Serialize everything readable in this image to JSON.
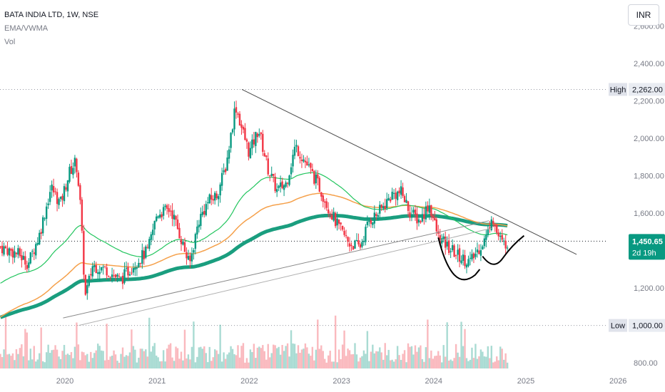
{
  "header": {
    "symbol_line": "BATA INDIA LTD, 1W, NSE",
    "indicator_1": "EMA/VWMA",
    "indicator_2": "Vol"
  },
  "currency_button": "INR",
  "price_axis": {
    "ticks": [
      {
        "value": 2600,
        "label": "2,600.00"
      },
      {
        "value": 2400,
        "label": "2,400.00"
      },
      {
        "value": 2200,
        "label": "2,200.00"
      },
      {
        "value": 2000,
        "label": "2,000.00"
      },
      {
        "value": 1800,
        "label": "1,800.00"
      },
      {
        "value": 1600,
        "label": "1,600.00"
      },
      {
        "value": 1200,
        "label": "1,200.00"
      },
      {
        "value": 1000,
        "label": "1,000.00"
      },
      {
        "value": 800,
        "label": "800.00"
      }
    ]
  },
  "time_axis": {
    "ticks": [
      {
        "value": 2020,
        "label": "2020"
      },
      {
        "value": 2021,
        "label": "2021"
      },
      {
        "value": 2022,
        "label": "2022"
      },
      {
        "value": 2023,
        "label": "2023"
      },
      {
        "value": 2024,
        "label": "2024"
      },
      {
        "value": 2025,
        "label": "2025"
      },
      {
        "value": 2026,
        "label": "2026"
      }
    ]
  },
  "markers": {
    "high": {
      "label": "High",
      "value_label": "2,262.00",
      "value": 2262
    },
    "low": {
      "label": "Low",
      "value_label": "1,000.00",
      "value": 1000
    },
    "last": {
      "value_label": "1,450.65",
      "countdown": "2d 19h",
      "value": 1450.65,
      "color": "#089981"
    }
  },
  "colors": {
    "up": "#089981",
    "down": "#f23645",
    "ema_fast": "#22c55e",
    "ema_mid": "#f5a04a",
    "vwma": "#1a9e7f",
    "trendline": "#4b4b4b"
  },
  "chart_data": {
    "type": "candlestick",
    "interval": "1W",
    "ylim": [
      770,
      2740
    ],
    "price_path": [
      [
        2019.3,
        1420
      ],
      [
        2019.5,
        1380
      ],
      [
        2019.6,
        1330
      ],
      [
        2019.72,
        1480
      ],
      [
        2019.85,
        1740
      ],
      [
        2019.95,
        1650
      ],
      [
        2020.05,
        1820
      ],
      [
        2020.12,
        1880
      ],
      [
        2020.16,
        1700
      ],
      [
        2020.22,
        1150
      ],
      [
        2020.3,
        1320
      ],
      [
        2020.45,
        1300
      ],
      [
        2020.6,
        1240
      ],
      [
        2020.75,
        1330
      ],
      [
        2020.9,
        1400
      ],
      [
        2021.0,
        1600
      ],
      [
        2021.15,
        1620
      ],
      [
        2021.25,
        1480
      ],
      [
        2021.35,
        1320
      ],
      [
        2021.45,
        1560
      ],
      [
        2021.55,
        1660
      ],
      [
        2021.65,
        1700
      ],
      [
        2021.75,
        1860
      ],
      [
        2021.85,
        2180
      ],
      [
        2021.92,
        2050
      ],
      [
        2022.0,
        1920
      ],
      [
        2022.1,
        2050
      ],
      [
        2022.2,
        1840
      ],
      [
        2022.3,
        1720
      ],
      [
        2022.4,
        1760
      ],
      [
        2022.5,
        1960
      ],
      [
        2022.6,
        1880
      ],
      [
        2022.75,
        1750
      ],
      [
        2022.85,
        1640
      ],
      [
        2022.95,
        1540
      ],
      [
        2023.08,
        1440
      ],
      [
        2023.2,
        1420
      ],
      [
        2023.3,
        1560
      ],
      [
        2023.4,
        1600
      ],
      [
        2023.55,
        1700
      ],
      [
        2023.65,
        1710
      ],
      [
        2023.75,
        1600
      ],
      [
        2023.85,
        1560
      ],
      [
        2023.95,
        1650
      ],
      [
        2024.05,
        1470
      ],
      [
        2024.15,
        1420
      ],
      [
        2024.3,
        1360
      ],
      [
        2024.4,
        1340
      ],
      [
        2024.5,
        1420
      ],
      [
        2024.58,
        1480
      ],
      [
        2024.63,
        1600
      ],
      [
        2024.68,
        1500
      ],
      [
        2024.75,
        1430
      ],
      [
        2024.8,
        1450.65
      ]
    ],
    "high": 2262,
    "low": 1000,
    "last": 1450.65
  }
}
